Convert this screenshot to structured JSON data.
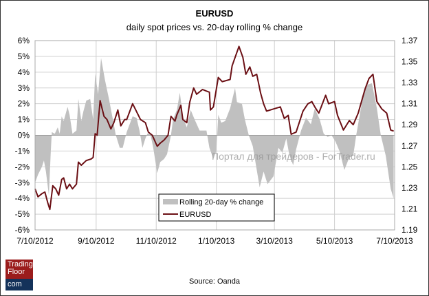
{
  "chart_data": {
    "type": "area+line",
    "title": "EURUSD",
    "subtitle": "daily spot prices vs. 20-day rolling % change",
    "x_start_date": "7/10/2012",
    "x_unit": "days since 7/10/2012",
    "xlim": [
      0,
      365
    ],
    "x_ticks": [
      {
        "day": 0,
        "label": "7/10/2012"
      },
      {
        "day": 62,
        "label": "9/10/2012"
      },
      {
        "day": 123,
        "label": "11/10/2012"
      },
      {
        "day": 184,
        "label": "1/10/2013"
      },
      {
        "day": 243,
        "label": "3/10/2013"
      },
      {
        "day": 304,
        "label": "5/10/2013"
      },
      {
        "day": 365,
        "label": "7/10/2013"
      }
    ],
    "y_left": {
      "lim": [
        -6,
        6
      ],
      "ticks": [
        "-6%",
        "-5%",
        "-4%",
        "-3%",
        "-2%",
        "-1%",
        "0%",
        "1%",
        "2%",
        "3%",
        "4%",
        "5%",
        "6%"
      ]
    },
    "y_right": {
      "lim": [
        1.19,
        1.37
      ],
      "ticks": [
        "1.19",
        "1.21",
        "1.23",
        "1.25",
        "1.27",
        "1.29",
        "1.31",
        "1.33",
        "1.35",
        "1.37"
      ]
    },
    "grid": true,
    "legend_position": "bottom-center",
    "series": [
      {
        "name": "Rolling 20-day % change",
        "axis": "left",
        "kind": "area",
        "color": "#c0c0c0",
        "points": [
          [
            0,
            -3.0
          ],
          [
            3,
            -2.5
          ],
          [
            7,
            -2.0
          ],
          [
            9,
            -1.6
          ],
          [
            11,
            -2.3
          ],
          [
            14,
            -3.8
          ],
          [
            16,
            -1.0
          ],
          [
            17,
            0.2
          ],
          [
            20,
            0.1
          ],
          [
            23,
            0.5
          ],
          [
            25,
            0.1
          ],
          [
            27,
            1.2
          ],
          [
            29,
            0.9
          ],
          [
            33,
            1.8
          ],
          [
            35,
            1.3
          ],
          [
            38,
            0.1
          ],
          [
            42,
            0.3
          ],
          [
            44,
            2.3
          ],
          [
            47,
            0.9
          ],
          [
            49,
            1.5
          ],
          [
            52,
            2.2
          ],
          [
            56,
            2.3
          ],
          [
            59,
            1.0
          ],
          [
            61,
            3.9
          ],
          [
            64,
            2.6
          ],
          [
            67,
            4.9
          ],
          [
            71,
            3.5
          ],
          [
            75,
            2.3
          ],
          [
            79,
            1.0
          ],
          [
            82,
            0.0
          ],
          [
            86,
            -0.8
          ],
          [
            89,
            -0.8
          ],
          [
            93,
            0.2
          ],
          [
            99,
            1.2
          ],
          [
            103,
            1.1
          ],
          [
            106,
            0.3
          ],
          [
            109,
            -0.8
          ],
          [
            112,
            -0.2
          ],
          [
            114,
            0.1
          ],
          [
            117,
            0.1
          ],
          [
            120,
            -0.8
          ],
          [
            124,
            -2.4
          ],
          [
            127,
            -1.7
          ],
          [
            131,
            -1.5
          ],
          [
            134,
            -1.2
          ],
          [
            138,
            0.0
          ],
          [
            140,
            1.0
          ],
          [
            144,
            1.6
          ],
          [
            147,
            2.7
          ],
          [
            150,
            1.2
          ],
          [
            154,
            0.5
          ],
          [
            158,
            1.6
          ],
          [
            162,
            1.0
          ],
          [
            167,
            0.3
          ],
          [
            174,
            0.3
          ],
          [
            177,
            -0.8
          ],
          [
            181,
            -1.5
          ],
          [
            184,
            -1.0
          ],
          [
            186,
            1.3
          ],
          [
            189,
            0.8
          ],
          [
            193,
            0.9
          ],
          [
            198,
            1.7
          ],
          [
            203,
            3.0
          ],
          [
            205,
            2.1
          ],
          [
            210,
            2.0
          ],
          [
            213,
            1.0
          ],
          [
            217,
            0.0
          ],
          [
            221,
            -0.7
          ],
          [
            228,
            -3.3
          ],
          [
            232,
            -2.3
          ],
          [
            236,
            -3.1
          ],
          [
            242,
            -2.6
          ],
          [
            247,
            -0.8
          ],
          [
            251,
            -1.1
          ],
          [
            255,
            -0.2
          ],
          [
            258,
            -1.2
          ],
          [
            262,
            -1.9
          ],
          [
            265,
            -0.9
          ],
          [
            270,
            0.3
          ],
          [
            275,
            1.1
          ],
          [
            280,
            0.7
          ],
          [
            284,
            1.7
          ],
          [
            289,
            1.0
          ],
          [
            293,
            0.1
          ],
          [
            297,
            -0.1
          ],
          [
            301,
            0.0
          ],
          [
            305,
            -0.4
          ],
          [
            309,
            -1.0
          ],
          [
            314,
            -2.2
          ],
          [
            319,
            -1.4
          ],
          [
            323,
            -1.3
          ],
          [
            326,
            0.0
          ],
          [
            333,
            2.5
          ],
          [
            337,
            3.2
          ],
          [
            342,
            3.3
          ],
          [
            347,
            1.7
          ],
          [
            351,
            0.0
          ],
          [
            356,
            -1.3
          ],
          [
            361,
            -3.4
          ],
          [
            364,
            -4.0
          ]
        ]
      },
      {
        "name": "EURUSD",
        "axis": "right",
        "kind": "line",
        "color": "#6b0f14",
        "points": [
          [
            0,
            1.229
          ],
          [
            3,
            1.2215
          ],
          [
            7,
            1.2245
          ],
          [
            10,
            1.226
          ],
          [
            13,
            1.2155
          ],
          [
            15,
            1.2095
          ],
          [
            18,
            1.232
          ],
          [
            21,
            1.229
          ],
          [
            24,
            1.223
          ],
          [
            27,
            1.238
          ],
          [
            29,
            1.2395
          ],
          [
            32,
            1.229
          ],
          [
            35,
            1.2335
          ],
          [
            38,
            1.229
          ],
          [
            42,
            1.2335
          ],
          [
            44,
            1.2545
          ],
          [
            47,
            1.2515
          ],
          [
            52,
            1.256
          ],
          [
            57,
            1.2575
          ],
          [
            59,
            1.259
          ],
          [
            61,
            1.2815
          ],
          [
            63,
            1.28
          ],
          [
            66,
            1.313
          ],
          [
            70,
            1.298
          ],
          [
            73,
            1.295
          ],
          [
            77,
            1.286
          ],
          [
            80,
            1.292
          ],
          [
            84,
            1.304
          ],
          [
            87,
            1.289
          ],
          [
            91,
            1.295
          ],
          [
            93,
            1.295
          ],
          [
            99,
            1.31
          ],
          [
            103,
            1.3025
          ],
          [
            107,
            1.295
          ],
          [
            112,
            1.292
          ],
          [
            115,
            1.283
          ],
          [
            119,
            1.28
          ],
          [
            124,
            1.2695
          ],
          [
            127,
            1.2725
          ],
          [
            131,
            1.2755
          ],
          [
            135,
            1.28
          ],
          [
            138,
            1.298
          ],
          [
            142,
            1.2935
          ],
          [
            144,
            1.2995
          ],
          [
            148,
            1.3085
          ],
          [
            150,
            1.295
          ],
          [
            154,
            1.292
          ],
          [
            157,
            1.3115
          ],
          [
            161,
            1.325
          ],
          [
            164,
            1.319
          ],
          [
            170,
            1.3235
          ],
          [
            174,
            1.322
          ],
          [
            177,
            1.321
          ],
          [
            178,
            1.304
          ],
          [
            181,
            1.307
          ],
          [
            186,
            1.335
          ],
          [
            190,
            1.331
          ],
          [
            198,
            1.333
          ],
          [
            200,
            1.346
          ],
          [
            207,
            1.3645
          ],
          [
            211,
            1.354
          ],
          [
            214,
            1.338
          ],
          [
            218,
            1.345
          ],
          [
            221,
            1.336
          ],
          [
            225,
            1.338
          ],
          [
            229,
            1.32
          ],
          [
            232,
            1.31
          ],
          [
            235,
            1.303
          ],
          [
            242,
            1.305
          ],
          [
            249,
            1.307
          ],
          [
            253,
            1.296
          ],
          [
            257,
            1.299
          ],
          [
            260,
            1.281
          ],
          [
            265,
            1.283
          ],
          [
            272,
            1.303
          ],
          [
            277,
            1.31
          ],
          [
            281,
            1.312
          ],
          [
            284,
            1.307
          ],
          [
            288,
            1.301
          ],
          [
            295,
            1.318
          ],
          [
            298,
            1.31
          ],
          [
            304,
            1.312
          ],
          [
            307,
            1.299
          ],
          [
            313,
            1.285
          ],
          [
            319,
            1.294
          ],
          [
            323,
            1.29
          ],
          [
            328,
            1.301
          ],
          [
            335,
            1.324
          ],
          [
            339,
            1.334
          ],
          [
            343,
            1.338
          ],
          [
            347,
            1.312
          ],
          [
            352,
            1.305
          ],
          [
            357,
            1.301
          ],
          [
            361,
            1.285
          ],
          [
            364,
            1.284
          ]
        ]
      }
    ]
  },
  "legend": {
    "area_label": "Rolling 20-day % change",
    "line_label": "EURUSD"
  },
  "watermark": "Портал для трейдеров - ForTrader.ru",
  "logo": {
    "line1": "Trading",
    "line2": "Floor",
    "line3": "com"
  },
  "source": "Source: Oanda"
}
